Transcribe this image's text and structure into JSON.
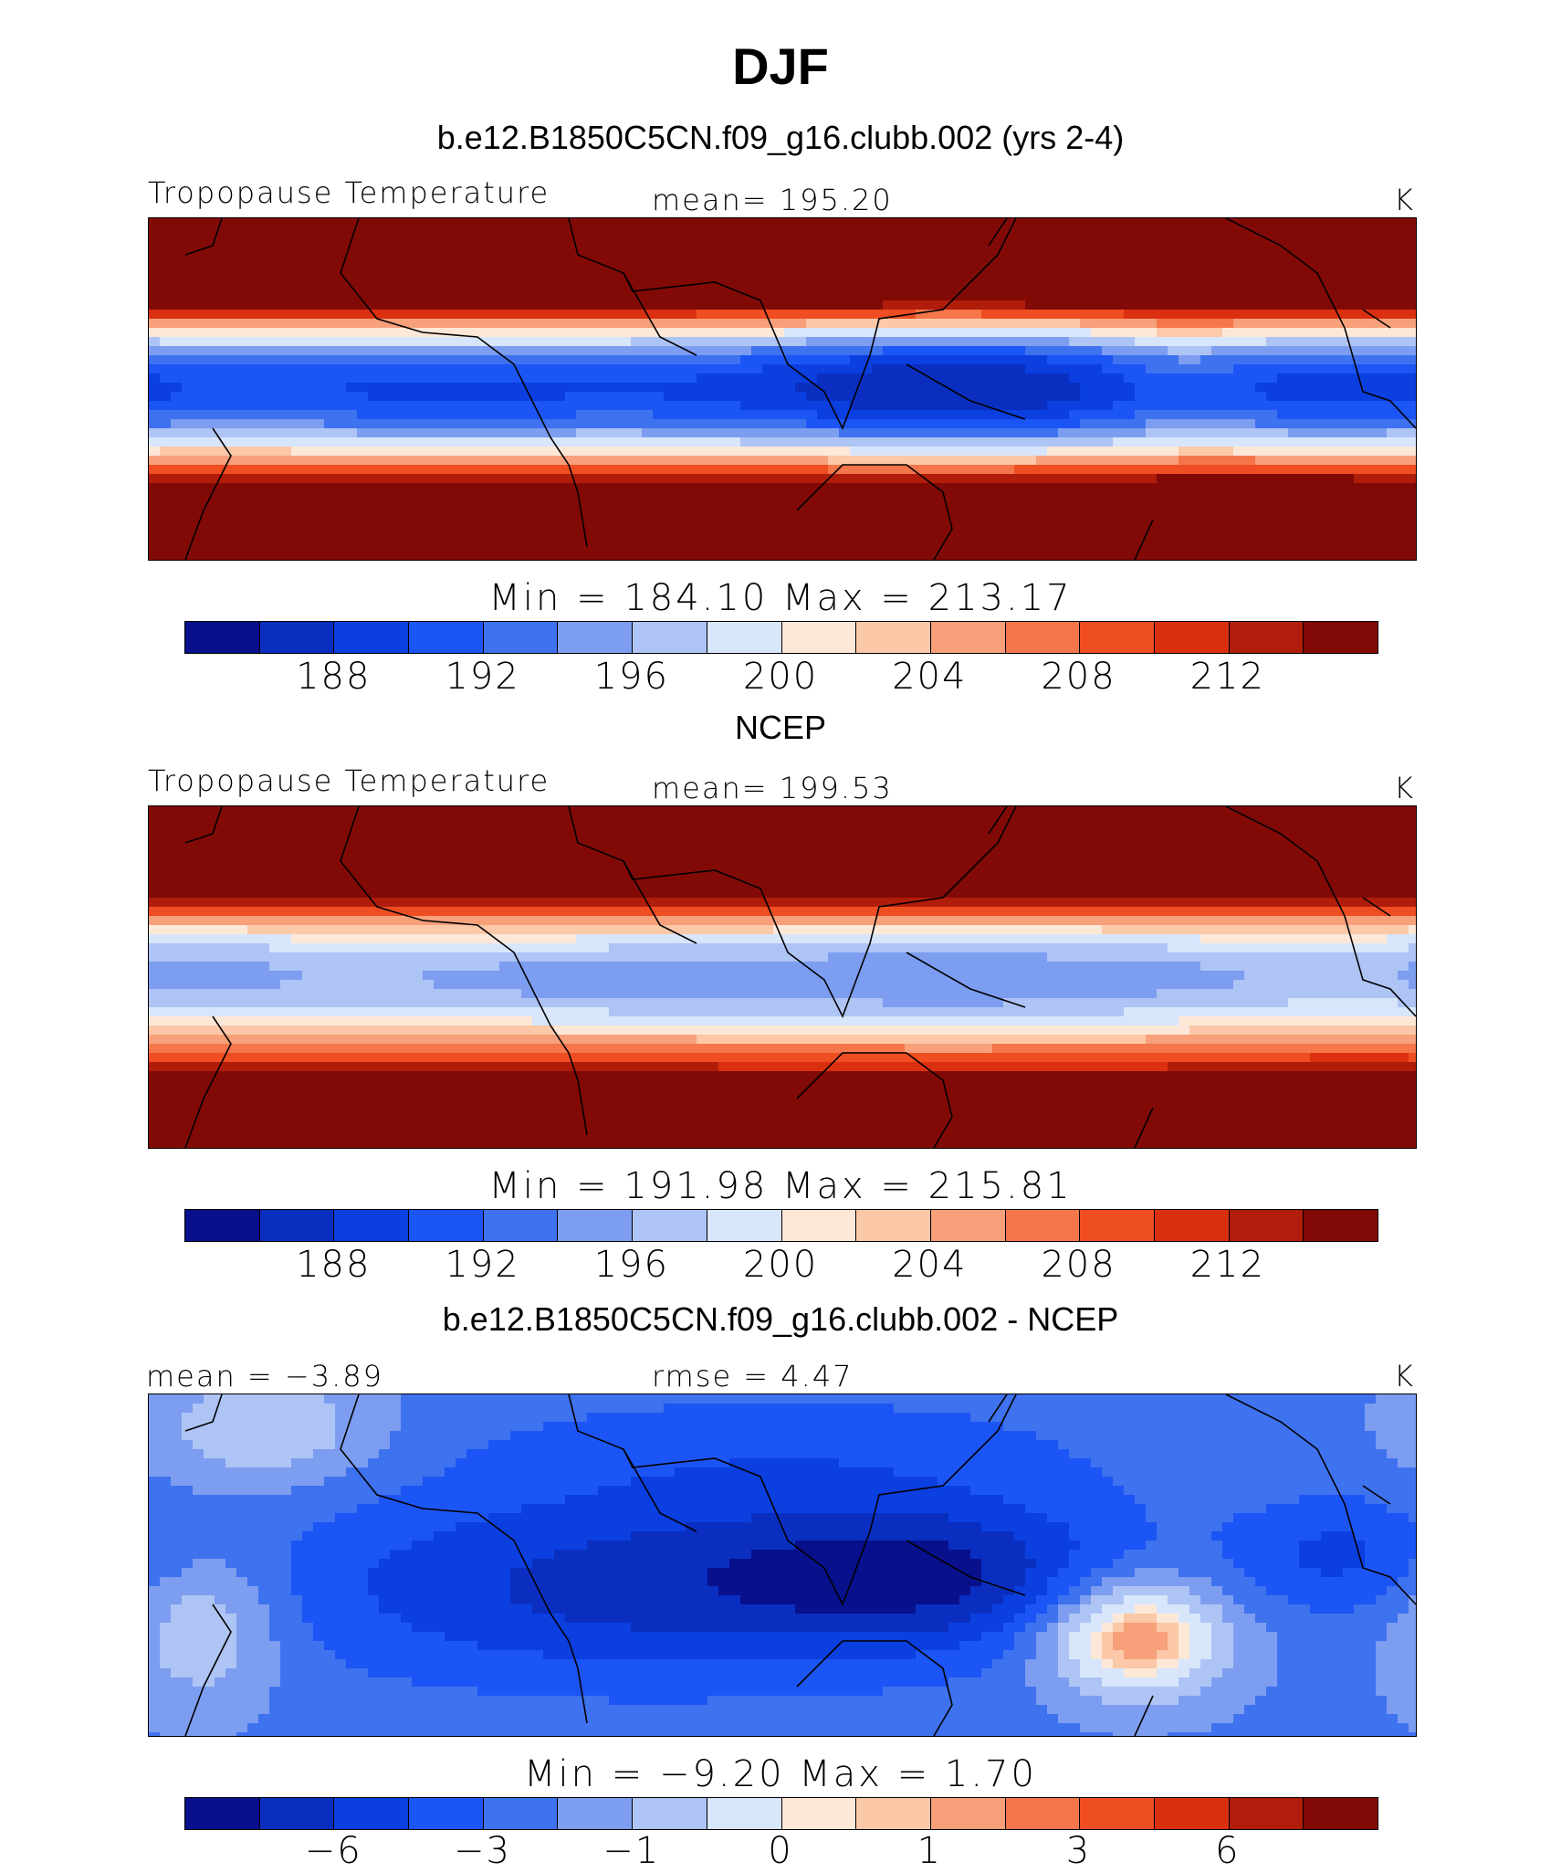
{
  "title": "DJF",
  "panels": [
    {
      "title": "b.e12.B1850C5CN.f09_g16.clubb.002 (yrs 2-4)",
      "left_label": "Tropopause Temperature",
      "center_label": "mean= 195.20",
      "right_label": "K",
      "minmax": "Min = 184.10 Max = 213.17",
      "ticks": [
        "188",
        "192",
        "196",
        "200",
        "204",
        "208",
        "212"
      ],
      "field": "model"
    },
    {
      "title": "NCEP",
      "left_label": "Tropopause Temperature",
      "center_label": "mean= 199.53",
      "right_label": "K",
      "minmax": "Min = 191.98 Max = 215.81",
      "ticks": [
        "188",
        "192",
        "196",
        "200",
        "204",
        "208",
        "212"
      ],
      "field": "obs"
    },
    {
      "title": "b.e12.B1850C5CN.f09_g16.clubb.002 - NCEP",
      "left_label": "mean = −3.89",
      "center_label": "rmse = 4.47",
      "right_label": "K",
      "minmax": "Min = −9.20 Max = 1.70",
      "ticks": [
        "−6",
        "−3",
        "−1",
        "0",
        "1",
        "3",
        "6"
      ],
      "field": "diff"
    }
  ],
  "colors": [
    "#08108c",
    "#0a2fc0",
    "#0b3fe0",
    "#1c55f5",
    "#3e72ee",
    "#7d9df0",
    "#aec4f5",
    "#d8e6fb",
    "#fde8d8",
    "#fbc8a8",
    "#f7a07a",
    "#f4764a",
    "#ef4d22",
    "#db3010",
    "#b01d0a",
    "#820a06"
  ]
}
